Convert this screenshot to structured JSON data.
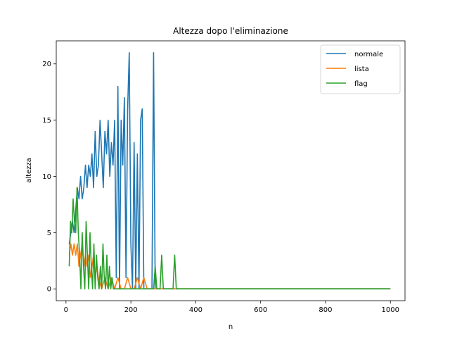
{
  "chart_data": {
    "type": "line",
    "title": "Altezza dopo l'eliminazione",
    "xlabel": "n",
    "ylabel": "altezza",
    "xlim": [
      -30,
      1045
    ],
    "ylim": [
      -1.05,
      22.05
    ],
    "xticks": [
      0,
      200,
      400,
      600,
      800,
      1000
    ],
    "yticks": [
      0,
      5,
      10,
      15,
      20
    ],
    "grid": false,
    "legend_position": "upper right",
    "series": [
      {
        "name": "normale",
        "color": "#1f77b4",
        "x": [
          10,
          15,
          20,
          25,
          30,
          35,
          40,
          45,
          50,
          55,
          60,
          65,
          70,
          75,
          80,
          85,
          90,
          95,
          100,
          105,
          110,
          115,
          120,
          125,
          130,
          135,
          140,
          145,
          150,
          155,
          160,
          165,
          170,
          175,
          180,
          185,
          190,
          195,
          200,
          205,
          210,
          215,
          220,
          225,
          230,
          235,
          240,
          245,
          250,
          255,
          260,
          265,
          270,
          275,
          280,
          1000
        ],
        "y": [
          4,
          5,
          6,
          5,
          7,
          9,
          8,
          10,
          8,
          9,
          11,
          9,
          11,
          10,
          12,
          9,
          14,
          10,
          11,
          15,
          12,
          9,
          14,
          12,
          15,
          10,
          13,
          11,
          15,
          1,
          18,
          0,
          15,
          11,
          17,
          1,
          16,
          21,
          4,
          0,
          13,
          0,
          12,
          0,
          15,
          16,
          0,
          0,
          0,
          0,
          0,
          0,
          21,
          0,
          0,
          0
        ]
      },
      {
        "name": "lista",
        "color": "#ff7f0e",
        "x": [
          10,
          15,
          20,
          25,
          30,
          35,
          40,
          45,
          50,
          55,
          60,
          65,
          70,
          75,
          80,
          85,
          90,
          95,
          100,
          110,
          120,
          130,
          140,
          150,
          160,
          170,
          180,
          190,
          200,
          210,
          220,
          230,
          240,
          250,
          1000
        ],
        "y": [
          3,
          4,
          3,
          4,
          3,
          4,
          2,
          3,
          4,
          2,
          3,
          2,
          3,
          1,
          2,
          3,
          1,
          2,
          1,
          0,
          1,
          0,
          1,
          0,
          1,
          0,
          0,
          1,
          0,
          0,
          1,
          0,
          1,
          0,
          0
        ]
      },
      {
        "name": "flag",
        "color": "#2ca02c",
        "x": [
          10,
          14,
          18,
          22,
          26,
          30,
          34,
          38,
          42,
          46,
          50,
          54,
          58,
          62,
          66,
          70,
          74,
          78,
          82,
          86,
          90,
          94,
          98,
          102,
          106,
          110,
          114,
          118,
          122,
          126,
          130,
          134,
          138,
          142,
          146,
          150,
          160,
          170,
          180,
          190,
          200,
          210,
          220,
          230,
          270,
          275,
          280,
          290,
          295,
          300,
          330,
          335,
          340,
          1000
        ],
        "y": [
          2,
          6,
          5,
          8,
          6,
          5,
          9,
          5,
          3,
          0,
          5,
          2,
          0,
          6,
          3,
          0,
          5,
          2,
          0,
          4,
          0,
          3,
          1,
          0,
          2,
          0,
          4,
          1,
          0,
          3,
          0,
          2,
          0,
          1,
          0,
          0,
          0,
          0,
          0,
          0,
          0,
          0,
          0,
          0,
          0,
          2,
          0,
          0,
          3,
          0,
          0,
          3,
          0,
          0
        ]
      }
    ]
  }
}
